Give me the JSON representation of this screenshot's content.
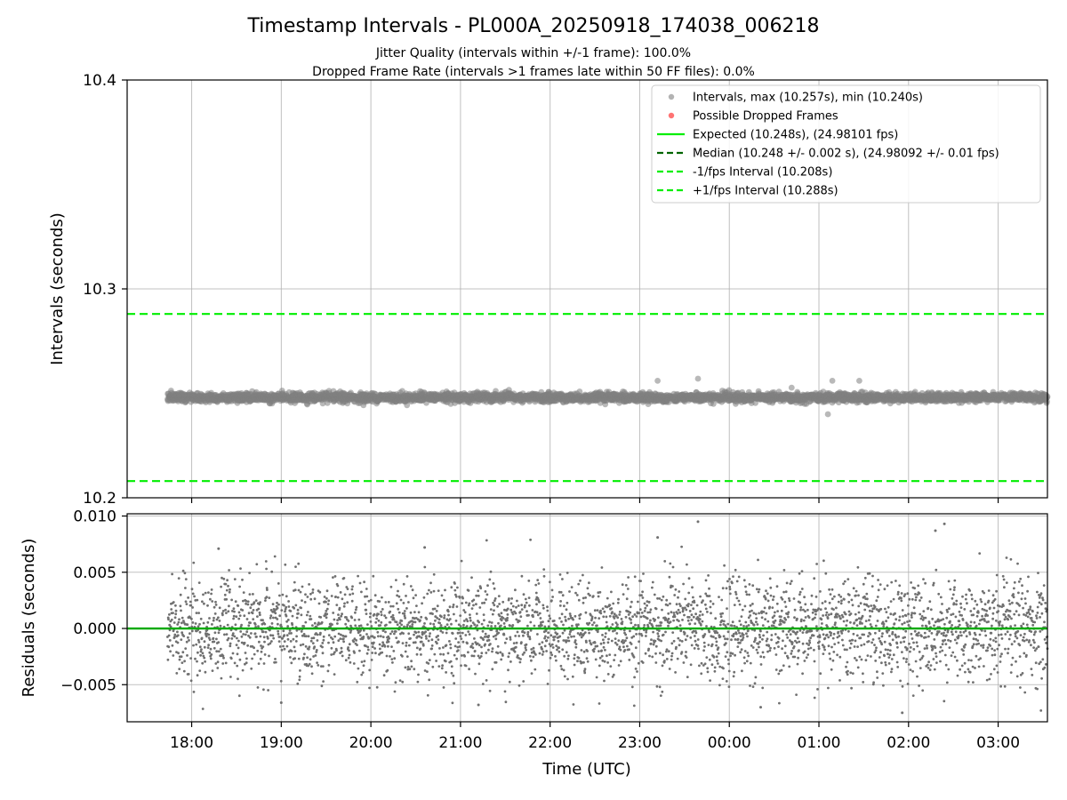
{
  "chart_data": [
    {
      "type": "scatter",
      "panel": "intervals",
      "title": "Timestamp Intervals - PL000A_20250918_174038_006218",
      "subtitles": [
        "Jitter Quality (intervals within +/-1 frame): 100.0%",
        "Dropped Frame Rate (intervals >1 frames late within 50 FF files): 0.0%"
      ],
      "ylabel": "Intervals (seconds)",
      "ylim": [
        10.2,
        10.4
      ],
      "yticks": [
        "10.2",
        "10.3",
        "10.4"
      ],
      "xlim_hours": [
        17.28,
        27.55
      ],
      "time_range_hours": [
        17.73,
        27.55
      ],
      "grid": true,
      "legend_position": "upper right",
      "series": [
        {
          "name": "Intervals, max (10.257s), min (10.240s)",
          "kind": "scatter",
          "color": "#808080",
          "center": 10.248,
          "spread": 0.002,
          "max": 10.257,
          "min": 10.24
        },
        {
          "name": "Possible Dropped Frames",
          "kind": "scatter",
          "color": "#ff5050",
          "count": 0
        },
        {
          "name": "Expected (10.248s), (24.98101 fps)",
          "kind": "hline",
          "style": "solid",
          "color": "#00ee00",
          "value": 10.248
        },
        {
          "name": "Median (10.248 +/- 0.002 s), (24.98092 +/- 0.01 fps)",
          "kind": "hline",
          "style": "dashed",
          "color": "#006400",
          "value": 10.248
        },
        {
          "name": "-1/fps Interval (10.208s)",
          "kind": "hline",
          "style": "dashed",
          "color": "#00ee00",
          "value": 10.208
        },
        {
          "name": "+1/fps Interval (10.288s)",
          "kind": "hline",
          "style": "dashed",
          "color": "#00ee00",
          "value": 10.288
        }
      ]
    },
    {
      "type": "scatter",
      "panel": "residuals",
      "ylabel": "Residuals (seconds)",
      "xlabel": "Time (UTC)",
      "ylim": [
        -0.0083,
        0.0102
      ],
      "yticks": [
        {
          "value": -0.005,
          "label": "−0.005"
        },
        {
          "value": 0.0,
          "label": "0.000"
        },
        {
          "value": 0.005,
          "label": "0.005"
        },
        {
          "value": 0.01,
          "label": "0.010"
        }
      ],
      "xticks": [
        {
          "hour": 18,
          "label": "18:00"
        },
        {
          "hour": 19,
          "label": "19:00"
        },
        {
          "hour": 20,
          "label": "20:00"
        },
        {
          "hour": 21,
          "label": "21:00"
        },
        {
          "hour": 22,
          "label": "22:00"
        },
        {
          "hour": 23,
          "label": "23:00"
        },
        {
          "hour": 24,
          "label": "00:00"
        },
        {
          "hour": 25,
          "label": "01:00"
        },
        {
          "hour": 26,
          "label": "02:00"
        },
        {
          "hour": 27,
          "label": "03:00"
        }
      ],
      "zero_line_color": "#00aa00",
      "point_color": "#707070",
      "residual_spread": 0.0022,
      "residual_max": 0.0095,
      "residual_min": -0.0075,
      "grid": true
    }
  ]
}
